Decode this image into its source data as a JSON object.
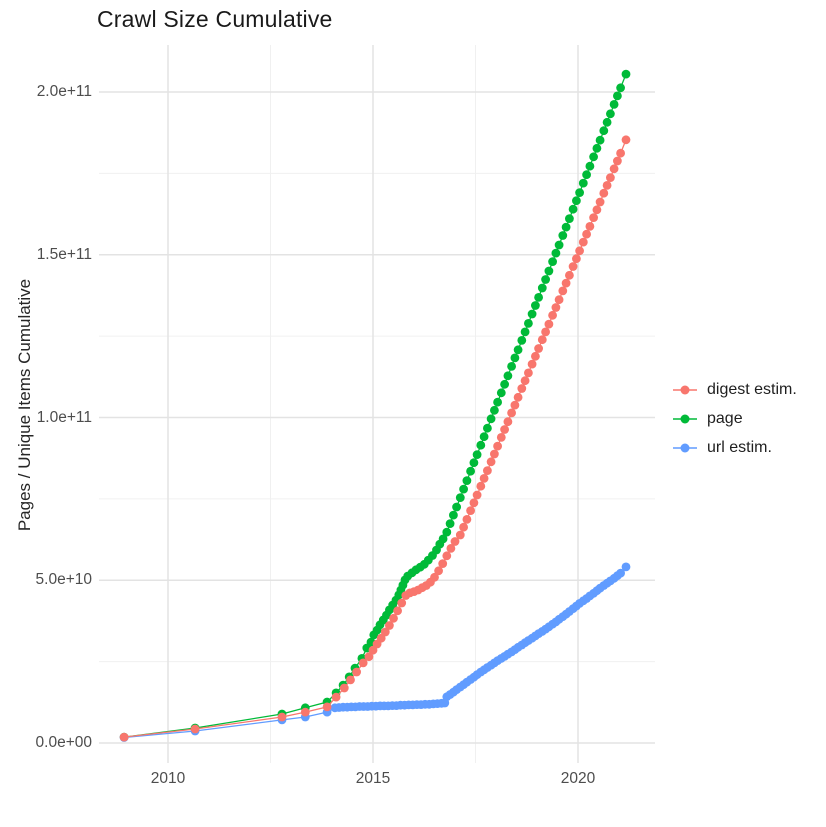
{
  "title": "Crawl Size Cumulative",
  "axes": {
    "y_label": "Pages / Unique Items Cumulative",
    "y_ticks": [
      {
        "label": "0.0e+00",
        "value_e9": 0
      },
      {
        "label": "5.0e+10",
        "value_e9": 50
      },
      {
        "label": "1.0e+11",
        "value_e9": 100
      },
      {
        "label": "1.5e+11",
        "value_e9": 150
      },
      {
        "label": "2.0e+11",
        "value_e9": 200
      }
    ],
    "x_ticks": [
      {
        "label": "2010",
        "year": 2010
      },
      {
        "label": "2015",
        "year": 2015
      },
      {
        "label": "2020",
        "year": 2020
      }
    ]
  },
  "legend": {
    "items": [
      {
        "label": "digest estim.",
        "color": "#F8766D"
      },
      {
        "label": "page",
        "color": "#00BA38"
      },
      {
        "label": "url estim.",
        "color": "#619CFF"
      }
    ]
  },
  "colors": {
    "digest": "#F8766D",
    "page": "#00BA38",
    "url": "#619CFF",
    "grid_major": "#e3e3e3",
    "grid_minor": "#f0f0f0",
    "tick_text": "#4d4d4d",
    "text": "#1f1f1f"
  },
  "chart_data": {
    "type": "scatter",
    "title": "Crawl Size Cumulative",
    "xlabel": "",
    "ylabel": "Pages / Unique Items Cumulative",
    "xlim": [
      2008.3,
      2021.9
    ],
    "ylim_e9": [
      -8,
      215
    ],
    "x_ticks_years": [
      2010,
      2015,
      2020
    ],
    "y_ticks_values_e9": [
      0,
      50,
      100,
      150,
      200
    ],
    "grid": "major+minor",
    "legend_position": "right",
    "value_scale": 1000000000.0,
    "note": "point values are cumulative items in units of 1e9 (billions); x is decimal year",
    "series": [
      {
        "name": "digest estim.",
        "color": "#F8766D",
        "z": 3,
        "points": [
          [
            2008.93,
            1.8
          ],
          [
            2010.66,
            4.3
          ],
          [
            2012.78,
            8.0
          ],
          [
            2013.35,
            9.5
          ],
          [
            2013.88,
            11.1
          ],
          [
            2014.1,
            14.1
          ],
          [
            2014.3,
            16.9
          ],
          [
            2014.45,
            19.4
          ],
          [
            2014.6,
            21.8
          ],
          [
            2014.76,
            24.6
          ],
          [
            2014.9,
            26.5
          ],
          [
            2015.0,
            28.5
          ],
          [
            2015.1,
            30.4
          ],
          [
            2015.2,
            32.2
          ],
          [
            2015.3,
            34.1
          ],
          [
            2015.4,
            36.1
          ],
          [
            2015.5,
            38.3
          ],
          [
            2015.6,
            40.6
          ],
          [
            2015.7,
            43.0
          ],
          [
            2015.8,
            45.3
          ],
          [
            2015.9,
            46.1
          ],
          [
            2016.0,
            46.5
          ],
          [
            2016.1,
            47.0
          ],
          [
            2016.2,
            47.7
          ],
          [
            2016.3,
            48.4
          ],
          [
            2016.4,
            49.4
          ],
          [
            2016.5,
            50.9
          ],
          [
            2016.6,
            52.9
          ],
          [
            2016.7,
            55.1
          ],
          [
            2016.8,
            57.5
          ],
          [
            2016.9,
            59.8
          ],
          [
            2017.0,
            61.9
          ],
          [
            2017.13,
            63.9
          ],
          [
            2017.21,
            66.3
          ],
          [
            2017.29,
            68.7
          ],
          [
            2017.38,
            71.4
          ],
          [
            2017.46,
            73.8
          ],
          [
            2017.54,
            76.2
          ],
          [
            2017.63,
            78.9
          ],
          [
            2017.71,
            81.3
          ],
          [
            2017.79,
            83.7
          ],
          [
            2017.88,
            86.4
          ],
          [
            2017.96,
            88.8
          ],
          [
            2018.04,
            91.2
          ],
          [
            2018.13,
            93.9
          ],
          [
            2018.21,
            96.3
          ],
          [
            2018.29,
            98.7
          ],
          [
            2018.38,
            101.4
          ],
          [
            2018.46,
            103.8
          ],
          [
            2018.54,
            106.2
          ],
          [
            2018.63,
            108.9
          ],
          [
            2018.71,
            111.3
          ],
          [
            2018.79,
            113.7
          ],
          [
            2018.88,
            116.4
          ],
          [
            2018.96,
            118.8
          ],
          [
            2019.04,
            121.2
          ],
          [
            2019.13,
            123.9
          ],
          [
            2019.21,
            126.3
          ],
          [
            2019.29,
            128.7
          ],
          [
            2019.38,
            131.4
          ],
          [
            2019.46,
            133.8
          ],
          [
            2019.54,
            136.2
          ],
          [
            2019.63,
            138.9
          ],
          [
            2019.71,
            141.3
          ],
          [
            2019.79,
            143.7
          ],
          [
            2019.88,
            146.4
          ],
          [
            2019.96,
            148.8
          ],
          [
            2020.04,
            151.2
          ],
          [
            2020.13,
            153.9
          ],
          [
            2020.21,
            156.3
          ],
          [
            2020.29,
            158.7
          ],
          [
            2020.38,
            161.4
          ],
          [
            2020.46,
            163.8
          ],
          [
            2020.54,
            166.2
          ],
          [
            2020.63,
            168.9
          ],
          [
            2020.71,
            171.3
          ],
          [
            2020.79,
            173.7
          ],
          [
            2020.88,
            176.4
          ],
          [
            2020.96,
            178.8
          ],
          [
            2021.04,
            181.2
          ],
          [
            2021.17,
            185.3
          ]
        ]
      },
      {
        "name": "page",
        "color": "#00BA38",
        "z": 1,
        "points": [
          [
            2008.93,
            1.8
          ],
          [
            2010.66,
            4.6
          ],
          [
            2012.78,
            8.9
          ],
          [
            2013.35,
            10.8
          ],
          [
            2013.88,
            12.6
          ],
          [
            2014.1,
            15.4
          ],
          [
            2014.27,
            17.8
          ],
          [
            2014.42,
            20.3
          ],
          [
            2014.56,
            23.0
          ],
          [
            2014.73,
            26.0
          ],
          [
            2014.85,
            29.2
          ],
          [
            2014.95,
            31.0
          ],
          [
            2015.02,
            33.2
          ],
          [
            2015.1,
            34.7
          ],
          [
            2015.17,
            36.3
          ],
          [
            2015.25,
            37.8
          ],
          [
            2015.33,
            39.3
          ],
          [
            2015.4,
            40.9
          ],
          [
            2015.48,
            42.4
          ],
          [
            2015.56,
            43.9
          ],
          [
            2015.63,
            45.5
          ],
          [
            2015.68,
            47.0
          ],
          [
            2015.73,
            48.5
          ],
          [
            2015.78,
            50.1
          ],
          [
            2015.85,
            51.3
          ],
          [
            2015.95,
            52.3
          ],
          [
            2016.05,
            53.2
          ],
          [
            2016.15,
            54.0
          ],
          [
            2016.25,
            54.9
          ],
          [
            2016.35,
            56.2
          ],
          [
            2016.45,
            57.6
          ],
          [
            2016.55,
            59.3
          ],
          [
            2016.63,
            61.1
          ],
          [
            2016.71,
            62.7
          ],
          [
            2016.8,
            64.8
          ],
          [
            2016.88,
            67.4
          ],
          [
            2016.96,
            70.0
          ],
          [
            2017.04,
            72.5
          ],
          [
            2017.13,
            75.4
          ],
          [
            2017.21,
            78.0
          ],
          [
            2017.29,
            80.6
          ],
          [
            2017.38,
            83.5
          ],
          [
            2017.46,
            86.1
          ],
          [
            2017.54,
            88.6
          ],
          [
            2017.63,
            91.5
          ],
          [
            2017.71,
            94.1
          ],
          [
            2017.79,
            96.7
          ],
          [
            2017.88,
            99.6
          ],
          [
            2017.96,
            102.2
          ],
          [
            2018.04,
            104.7
          ],
          [
            2018.13,
            107.6
          ],
          [
            2018.21,
            110.2
          ],
          [
            2018.29,
            112.8
          ],
          [
            2018.38,
            115.7
          ],
          [
            2018.46,
            118.3
          ],
          [
            2018.54,
            120.8
          ],
          [
            2018.63,
            123.7
          ],
          [
            2018.71,
            126.3
          ],
          [
            2018.79,
            128.9
          ],
          [
            2018.88,
            131.8
          ],
          [
            2018.96,
            134.4
          ],
          [
            2019.04,
            136.9
          ],
          [
            2019.13,
            139.8
          ],
          [
            2019.21,
            142.4
          ],
          [
            2019.29,
            145.0
          ],
          [
            2019.38,
            147.9
          ],
          [
            2019.46,
            150.5
          ],
          [
            2019.54,
            153.0
          ],
          [
            2019.63,
            155.9
          ],
          [
            2019.71,
            158.5
          ],
          [
            2019.79,
            161.1
          ],
          [
            2019.88,
            164.0
          ],
          [
            2019.96,
            166.6
          ],
          [
            2020.04,
            169.1
          ],
          [
            2020.13,
            172.0
          ],
          [
            2020.21,
            174.6
          ],
          [
            2020.29,
            177.2
          ],
          [
            2020.38,
            180.1
          ],
          [
            2020.46,
            182.7
          ],
          [
            2020.54,
            185.2
          ],
          [
            2020.63,
            188.1
          ],
          [
            2020.71,
            190.7
          ],
          [
            2020.79,
            193.3
          ],
          [
            2020.88,
            196.2
          ],
          [
            2020.96,
            198.8
          ],
          [
            2021.04,
            201.3
          ],
          [
            2021.17,
            205.5
          ]
        ]
      },
      {
        "name": "url estim.",
        "color": "#619CFF",
        "z": 2,
        "points": [
          [
            2008.93,
            1.7
          ],
          [
            2010.66,
            3.7
          ],
          [
            2012.78,
            7.1
          ],
          [
            2013.35,
            8.0
          ],
          [
            2013.88,
            9.5
          ],
          [
            2014.07,
            10.8
          ],
          [
            2014.17,
            10.9
          ],
          [
            2014.27,
            11.0
          ],
          [
            2014.37,
            11.0
          ],
          [
            2014.47,
            11.1
          ],
          [
            2014.57,
            11.1
          ],
          [
            2014.67,
            11.2
          ],
          [
            2014.77,
            11.2
          ],
          [
            2014.87,
            11.2
          ],
          [
            2014.97,
            11.3
          ],
          [
            2015.07,
            11.3
          ],
          [
            2015.17,
            11.4
          ],
          [
            2015.27,
            11.4
          ],
          [
            2015.37,
            11.4
          ],
          [
            2015.47,
            11.5
          ],
          [
            2015.57,
            11.5
          ],
          [
            2015.67,
            11.6
          ],
          [
            2015.77,
            11.6
          ],
          [
            2015.87,
            11.7
          ],
          [
            2015.97,
            11.7
          ],
          [
            2016.07,
            11.8
          ],
          [
            2016.17,
            11.8
          ],
          [
            2016.27,
            11.9
          ],
          [
            2016.37,
            11.9
          ],
          [
            2016.47,
            12.0
          ],
          [
            2016.57,
            12.1
          ],
          [
            2016.67,
            12.2
          ],
          [
            2016.75,
            12.3
          ],
          [
            2016.8,
            14.2
          ],
          [
            2016.88,
            14.9
          ],
          [
            2016.96,
            15.6
          ],
          [
            2017.04,
            16.4
          ],
          [
            2017.13,
            17.2
          ],
          [
            2017.21,
            17.9
          ],
          [
            2017.29,
            18.7
          ],
          [
            2017.38,
            19.5
          ],
          [
            2017.46,
            20.2
          ],
          [
            2017.54,
            21.0
          ],
          [
            2017.63,
            21.8
          ],
          [
            2017.71,
            22.5
          ],
          [
            2017.79,
            23.2
          ],
          [
            2017.88,
            23.9
          ],
          [
            2017.96,
            24.6
          ],
          [
            2018.04,
            25.3
          ],
          [
            2018.13,
            26.0
          ],
          [
            2018.21,
            26.6
          ],
          [
            2018.29,
            27.3
          ],
          [
            2018.38,
            28.0
          ],
          [
            2018.46,
            28.7
          ],
          [
            2018.54,
            29.4
          ],
          [
            2018.63,
            30.1
          ],
          [
            2018.71,
            30.8
          ],
          [
            2018.79,
            31.5
          ],
          [
            2018.88,
            32.2
          ],
          [
            2018.96,
            32.9
          ],
          [
            2019.04,
            33.6
          ],
          [
            2019.13,
            34.3
          ],
          [
            2019.21,
            35.0
          ],
          [
            2019.29,
            35.7
          ],
          [
            2019.38,
            36.5
          ],
          [
            2019.46,
            37.2
          ],
          [
            2019.54,
            38.0
          ],
          [
            2019.63,
            38.8
          ],
          [
            2019.71,
            39.6
          ],
          [
            2019.79,
            40.4
          ],
          [
            2019.88,
            41.3
          ],
          [
            2019.96,
            42.1
          ],
          [
            2020.04,
            42.9
          ],
          [
            2020.13,
            43.7
          ],
          [
            2020.21,
            44.4
          ],
          [
            2020.29,
            45.2
          ],
          [
            2020.38,
            46.0
          ],
          [
            2020.46,
            46.8
          ],
          [
            2020.54,
            47.6
          ],
          [
            2020.63,
            48.4
          ],
          [
            2020.71,
            49.1
          ],
          [
            2020.79,
            49.8
          ],
          [
            2020.88,
            50.6
          ],
          [
            2020.96,
            51.4
          ],
          [
            2021.04,
            52.2
          ],
          [
            2021.17,
            54.1
          ]
        ]
      }
    ]
  }
}
